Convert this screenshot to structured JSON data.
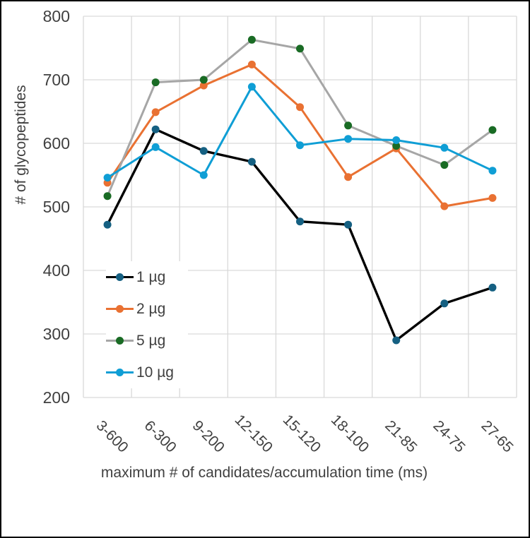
{
  "frame": {
    "background": "#FFFFFF",
    "border_color": "#000000"
  },
  "chart_data": {
    "type": "line",
    "title": "",
    "xlabel": "maximum # of candidates/accumulation time (ms)",
    "ylabel": "# of glycopeptides",
    "categories": [
      "3-600",
      "6-300",
      "9-200",
      "12-150",
      "15-120",
      "18-100",
      "21-85",
      "24-75",
      "27-65"
    ],
    "series": [
      {
        "name": "1 µg",
        "line_color": "#000000",
        "marker_color": "#156082",
        "values": [
          472,
          622,
          588,
          571,
          477,
          472,
          290,
          348,
          373
        ]
      },
      {
        "name": "2 µg",
        "line_color": "#E97132",
        "marker_color": "#E97132",
        "values": [
          538,
          649,
          691,
          724,
          657,
          547,
          592,
          501,
          514
        ]
      },
      {
        "name": "5 µg",
        "line_color": "#A6A6A6",
        "marker_color": "#196B24",
        "values": [
          517,
          696,
          700,
          763,
          749,
          628,
          596,
          566,
          621
        ]
      },
      {
        "name": "10 µg",
        "line_color": "#0F9ED5",
        "marker_color": "#0F9ED5",
        "values": [
          546,
          594,
          550,
          689,
          597,
          607,
          605,
          593,
          557
        ]
      }
    ],
    "y_axis": {
      "min": 200,
      "max": 800,
      "step": 100,
      "tick_labels": [
        "200",
        "300",
        "400",
        "500",
        "600",
        "700",
        "800"
      ]
    },
    "grid": true,
    "gridline_color": "#D9D9D9",
    "text_color": "#404040",
    "legend_position": "inside-left",
    "legend_labels": [
      "1 µg",
      "2 µg",
      "5 µg",
      "10 µg"
    ]
  }
}
